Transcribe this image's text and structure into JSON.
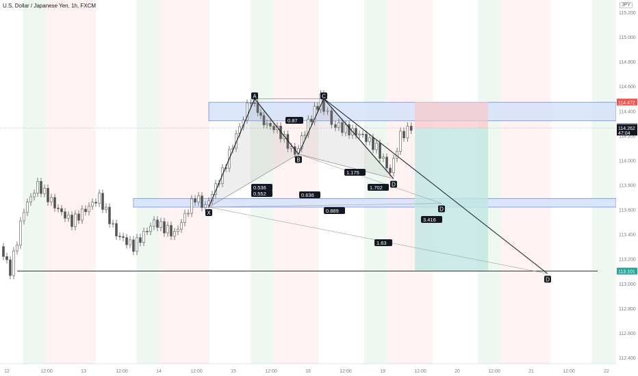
{
  "header": {
    "title": "U.S. Dollar / Japanese Yen, 1h, FXCM",
    "currency_badge": "JPY"
  },
  "chart_data": {
    "type": "candlestick",
    "y_range": [
      112.35,
      115.3
    ],
    "price_ticks": [
      115.2,
      115.0,
      114.8,
      114.6,
      114.4,
      114.2,
      114.0,
      113.8,
      113.6,
      113.4,
      113.2,
      113.0,
      112.8,
      112.6,
      112.4
    ],
    "price_tick_labels": [
      "115.200",
      "115.000",
      "114.800",
      "114.600",
      "114.400",
      "114.200",
      "114.000",
      "113.800",
      "113.600",
      "113.400",
      "113.200",
      "113.000",
      "112.800",
      "112.600",
      "112.400"
    ],
    "time_ticks": [
      "12",
      "12:00",
      "13",
      "12:00",
      "14",
      "12:00",
      "15",
      "12:00",
      "18",
      "12:00",
      "19",
      "12:00",
      "20",
      "12:00",
      "21",
      "12:00",
      "22"
    ],
    "price_labels": [
      {
        "value": 114.472,
        "text": "114.472",
        "color": "#ef5350"
      },
      {
        "value": 114.272,
        "text": "114.272",
        "color": "#787b86"
      },
      {
        "value": 114.262,
        "text": "114.262",
        "sub": "47:04",
        "color": "#131722"
      },
      {
        "value": 113.101,
        "text": "113.101",
        "color": "#26a69a"
      }
    ],
    "pattern_points": [
      {
        "label": "X",
        "time": 12.8,
        "value": 113.62
      },
      {
        "label": "A",
        "time": 15.2,
        "value": 114.5
      },
      {
        "label": "B",
        "time": 17.1,
        "value": 114.05
      },
      {
        "label": "C",
        "time": 18.1,
        "value": 114.5
      },
      {
        "label": "D",
        "time": 20.6,
        "value": 113.85
      }
    ],
    "projected_points": [
      {
        "label": "D",
        "time": 28.3,
        "value": 113.65
      },
      {
        "label": "D",
        "time": 32.8,
        "value": 113.08
      }
    ],
    "ratios": [
      "0.87",
      "0.536",
      "0.552",
      "0.636",
      "1.175",
      "1.702",
      "0.889",
      "3.416",
      "1.63"
    ],
    "zones": [
      {
        "from": 114.32,
        "to": 114.47,
        "color": "#d6e2fa"
      },
      {
        "from": 113.62,
        "to": 113.69,
        "color": "#d6e2fa"
      }
    ],
    "position": {
      "entry": 114.262,
      "stop": 114.472,
      "target": 113.101
    },
    "grid": false,
    "legend": "none"
  }
}
